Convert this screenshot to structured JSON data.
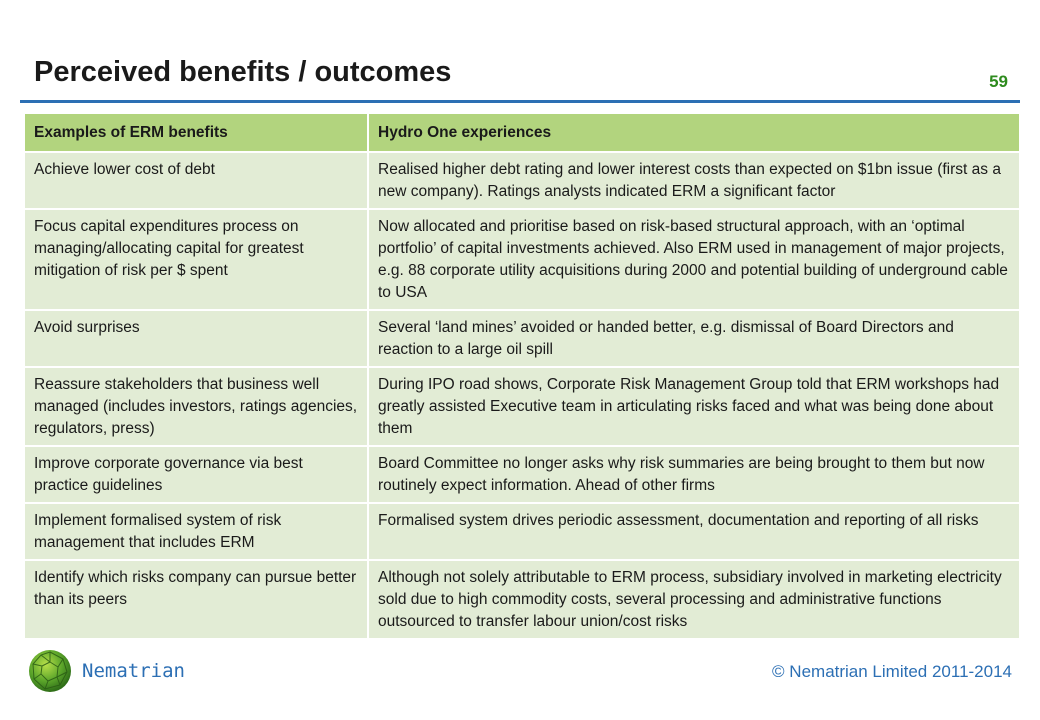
{
  "slide": {
    "title": "Perceived benefits / outcomes",
    "page_number": "59"
  },
  "table": {
    "headers": [
      "Examples of ERM benefits",
      "Hydro One experiences"
    ],
    "rows": [
      [
        "Achieve lower cost of debt",
        "Realised higher debt rating and lower interest costs than expected on $1bn issue (first as a new company). Ratings analysts indicated ERM a significant factor"
      ],
      [
        "Focus capital expenditures process on managing/allocating capital for greatest mitigation of risk per $ spent",
        "Now allocated and prioritise based on risk-based structural approach, with an ‘optimal portfolio’ of capital investments achieved. Also ERM used in management of major projects, e.g. 88 corporate utility acquisitions during 2000 and potential building of underground cable to USA"
      ],
      [
        "Avoid surprises",
        "Several ‘land mines’ avoided or handed better, e.g. dismissal of Board Directors and reaction to a large oil spill"
      ],
      [
        "Reassure stakeholders that business well managed (includes investors, ratings agencies, regulators, press)",
        "During IPO road shows, Corporate Risk Management Group told that ERM workshops had greatly assisted Executive team in articulating risks faced and what was being done about them"
      ],
      [
        "Improve corporate governance via best practice guidelines",
        "Board Committee no longer asks why risk summaries are being brought to them but now routinely expect information. Ahead of other firms"
      ],
      [
        "Implement formalised system of risk management that includes ERM",
        "Formalised system drives periodic assessment, documentation and reporting of all risks"
      ],
      [
        "Identify which risks company can pursue better than its peers",
        "Although not solely attributable to ERM process, subsidiary involved in marketing electricity sold due to high commodity costs, several processing and administrative functions outsourced to transfer labour union/cost risks"
      ]
    ]
  },
  "footer": {
    "brand": "Nematrian",
    "copyright": "© Nematrian Limited 2011-2014",
    "logo_icon": "green-geodesic-sphere-icon"
  },
  "colors": {
    "header_fill": "#b2d47e",
    "row_fill": "#e2ecd5",
    "rule": "#2c6fb4",
    "page_number": "#2e8b1e",
    "footer_text": "#2c6fb4"
  }
}
